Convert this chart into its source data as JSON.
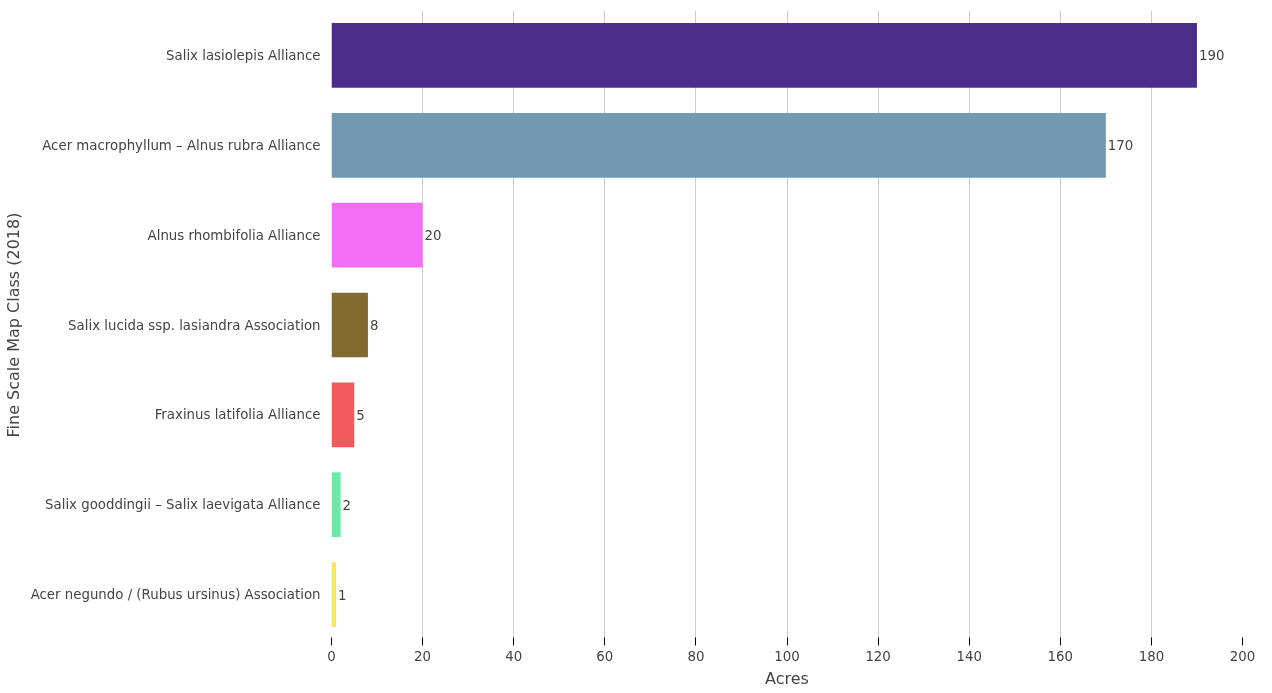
{
  "chart_data": {
    "type": "bar",
    "orientation": "horizontal",
    "xlabel": "Acres",
    "ylabel": "Fine Scale Map Class (2018)",
    "categories": [
      "Salix lasiolepis Alliance",
      "Acer macrophyllum – Alnus rubra Alliance",
      "Alnus rhombifolia Alliance",
      "Salix lucida ssp. lasiandra Association",
      "Fraxinus latifolia Alliance",
      "Salix gooddingii – Salix laevigata Alliance",
      "Acer negundo / (Rubus ursinus) Association"
    ],
    "values": [
      190,
      170,
      20,
      8,
      5,
      2,
      1
    ],
    "colors": [
      "#4b2e8c",
      "#7299b0",
      "#f46df5",
      "#826a30",
      "#f15a5a",
      "#6ee8a6",
      "#f7e75a"
    ],
    "xlim": [
      0,
      200
    ],
    "xticks": [
      0,
      20,
      40,
      60,
      80,
      100,
      120,
      140,
      160,
      180,
      200
    ],
    "grid": "x",
    "data_labels": true
  }
}
